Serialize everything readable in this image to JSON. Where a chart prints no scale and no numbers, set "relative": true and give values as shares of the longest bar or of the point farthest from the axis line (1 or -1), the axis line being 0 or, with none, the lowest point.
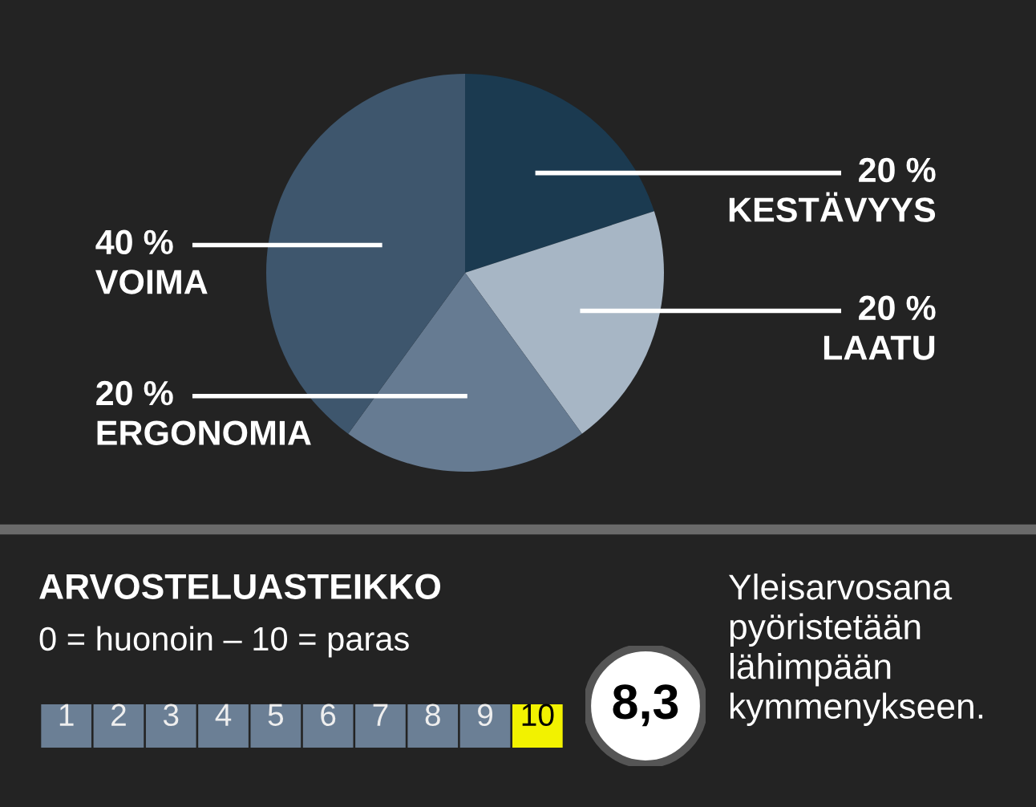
{
  "chart_data": [
    {
      "type": "pie",
      "categories": [
        "KESTÄVYYS",
        "LAATU",
        "ERGONOMIA",
        "VOIMA"
      ],
      "values": [
        20,
        20,
        20,
        40
      ],
      "value_labels": [
        "20 %",
        "20 %",
        "20 %",
        "40 %"
      ],
      "colors": [
        "#1b3a50",
        "#a7b6c5",
        "#667b92",
        "#3e566d"
      ],
      "legend": false
    },
    {
      "type": "bar",
      "relative": true,
      "values": [
        1,
        1,
        1,
        1,
        1,
        1,
        1,
        1,
        1,
        1
      ],
      "title": "ARVOSTELUASTEIKKO",
      "subtitle": "0 = huonoin – 10 = paras",
      "categories": [
        "1",
        "2",
        "3",
        "4",
        "5",
        "6",
        "7",
        "8",
        "9",
        "10"
      ],
      "colors": [
        "#6b7f95",
        "#6b7f95",
        "#6b7f95",
        "#6b7f95",
        "#6b7f95",
        "#6b7f95",
        "#6b7f95",
        "#6b7f95",
        "#6b7f95",
        "#f2f200"
      ],
      "annotations": [
        "8,3",
        "Yleisarvosana\npyöristetään\nlähimpään\nkymmenykseen."
      ]
    }
  ]
}
